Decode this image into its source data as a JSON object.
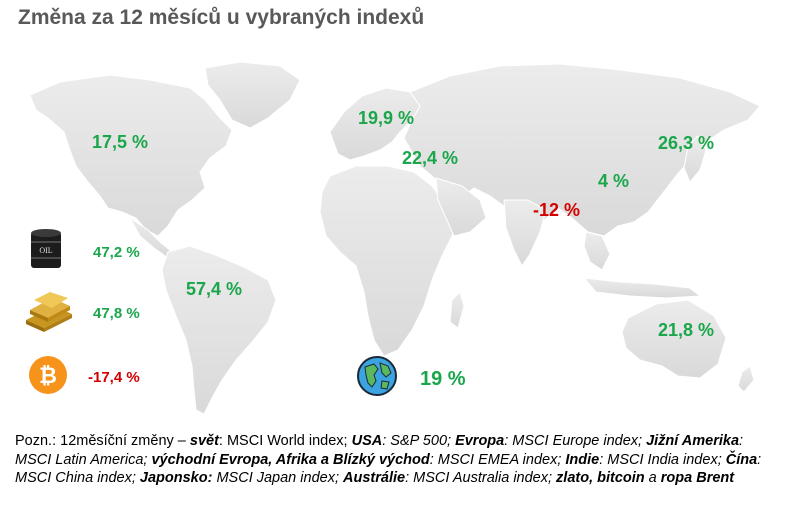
{
  "title": "Změna za 12 měsíců u vybraných indexů",
  "regions": {
    "usa": "17,5 %",
    "latin_america": "57,4 %",
    "europe": "19,9 %",
    "emea": "22,4 %",
    "india": "-12 %",
    "china": "4 %",
    "japan": "26,3 %",
    "australia": "21,8 %",
    "world": "19 %"
  },
  "commodities": {
    "oil": "47,2 %",
    "gold": "47,8 %",
    "bitcoin": "-17,4 %"
  },
  "oil_label": "OIL",
  "note": {
    "intro": "Pozn.: 12měsíční změny – ",
    "world_term": "svět",
    "world_desc": ": MSCI World index; ",
    "usa_term": "USA",
    "usa_desc": ": S&P 500; ",
    "europe_term": "Evropa",
    "europe_desc": ": MSCI Europe index; ",
    "latam_term": "Jižní Amerika",
    "latam_desc": ": MSCI Latin America; ",
    "emea_term": "východní Evropa, Afrika a Blízký východ",
    "emea_desc": ": MSCI EMEA index; ",
    "india_term": "Indie",
    "india_desc": ": MSCI India index; ",
    "china_term": "Čína",
    "china_desc": ": MSCI China index; ",
    "japan_term": "Japonsko:",
    "japan_desc": " MSCI Japan index; ",
    "australia_term": "Austrálie",
    "australia_desc": ": MSCI Australia index; ",
    "commodities_term": "zlato, bitcoin",
    "and_word": " a ",
    "brent_term": "ropa Brent"
  },
  "colors": {
    "positive": "#1aa64a",
    "negative": "#d40000",
    "title": "#595959",
    "land": "#e6e6e6"
  }
}
